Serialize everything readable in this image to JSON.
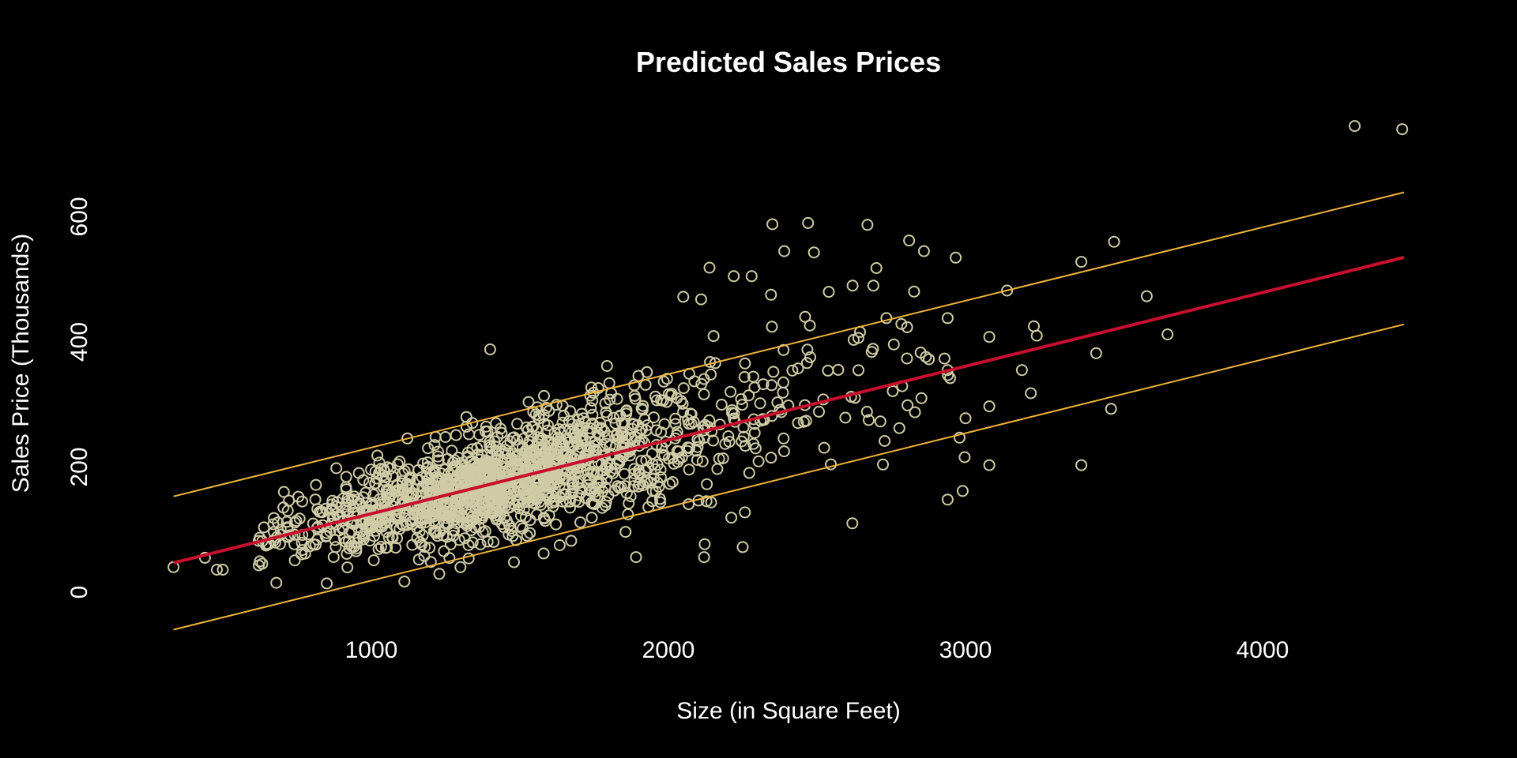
{
  "chart_data": {
    "type": "scatter",
    "title": "Predicted Sales Prices",
    "xlabel": "Size (in Square Feet)",
    "ylabel": "Sales Price (Thousands)",
    "xlim": [
      200,
      4600
    ],
    "ylim": [
      -20,
      800
    ],
    "x_ticks": [
      1000,
      2000,
      3000,
      4000
    ],
    "y_ticks": [
      0,
      200,
      400,
      600
    ],
    "grid": false,
    "legend": "none",
    "colors": {
      "background": "#000000",
      "points": "#cfcba6",
      "fit_line": "#c8102e",
      "interval_lines": "#f0b43c",
      "text": "#ffffff"
    },
    "fit_line": {
      "x": [
        334,
        4476
      ],
      "y": [
        47,
        535
      ]
    },
    "upper_interval": {
      "x": [
        334,
        4476
      ],
      "y": [
        153,
        639
      ]
    },
    "lower_interval": {
      "x": [
        334,
        4476
      ],
      "y": [
        -60,
        428
      ]
    },
    "point_cloud": {
      "n": 1450,
      "seed": 7
    },
    "outliers": [
      {
        "x": 334,
        "y": 40
      },
      {
        "x": 480,
        "y": 36
      },
      {
        "x": 500,
        "y": 36
      },
      {
        "x": 440,
        "y": 55
      },
      {
        "x": 680,
        "y": 15
      },
      {
        "x": 850,
        "y": 14
      },
      {
        "x": 1300,
        "y": 40
      },
      {
        "x": 1480,
        "y": 48
      },
      {
        "x": 1400,
        "y": 388
      },
      {
        "x": 1320,
        "y": 280
      },
      {
        "x": 1580,
        "y": 62
      },
      {
        "x": 2120,
        "y": 56
      },
      {
        "x": 2250,
        "y": 72
      },
      {
        "x": 2350,
        "y": 588
      },
      {
        "x": 2390,
        "y": 545
      },
      {
        "x": 2470,
        "y": 590
      },
      {
        "x": 2490,
        "y": 543
      },
      {
        "x": 2670,
        "y": 587
      },
      {
        "x": 2700,
        "y": 518
      },
      {
        "x": 2810,
        "y": 562
      },
      {
        "x": 2860,
        "y": 545
      },
      {
        "x": 2220,
        "y": 505
      },
      {
        "x": 2280,
        "y": 505
      },
      {
        "x": 2620,
        "y": 490
      },
      {
        "x": 2690,
        "y": 490
      },
      {
        "x": 3140,
        "y": 482
      },
      {
        "x": 3390,
        "y": 528
      },
      {
        "x": 3500,
        "y": 560
      },
      {
        "x": 3610,
        "y": 473
      },
      {
        "x": 3680,
        "y": 412
      },
      {
        "x": 3230,
        "y": 425
      },
      {
        "x": 3240,
        "y": 410
      },
      {
        "x": 3080,
        "y": 408
      },
      {
        "x": 3440,
        "y": 382
      },
      {
        "x": 3190,
        "y": 355
      },
      {
        "x": 3220,
        "y": 318
      },
      {
        "x": 3080,
        "y": 297
      },
      {
        "x": 3490,
        "y": 293
      },
      {
        "x": 3000,
        "y": 278
      },
      {
        "x": 2980,
        "y": 247
      },
      {
        "x": 3080,
        "y": 203
      },
      {
        "x": 3390,
        "y": 203
      },
      {
        "x": 2940,
        "y": 148
      },
      {
        "x": 2940,
        "y": 438
      },
      {
        "x": 2940,
        "y": 355
      },
      {
        "x": 4310,
        "y": 745
      },
      {
        "x": 4470,
        "y": 740
      },
      {
        "x": 2540,
        "y": 480
      },
      {
        "x": 2460,
        "y": 440
      },
      {
        "x": 2050,
        "y": 472
      },
      {
        "x": 2110,
        "y": 468
      }
    ]
  }
}
